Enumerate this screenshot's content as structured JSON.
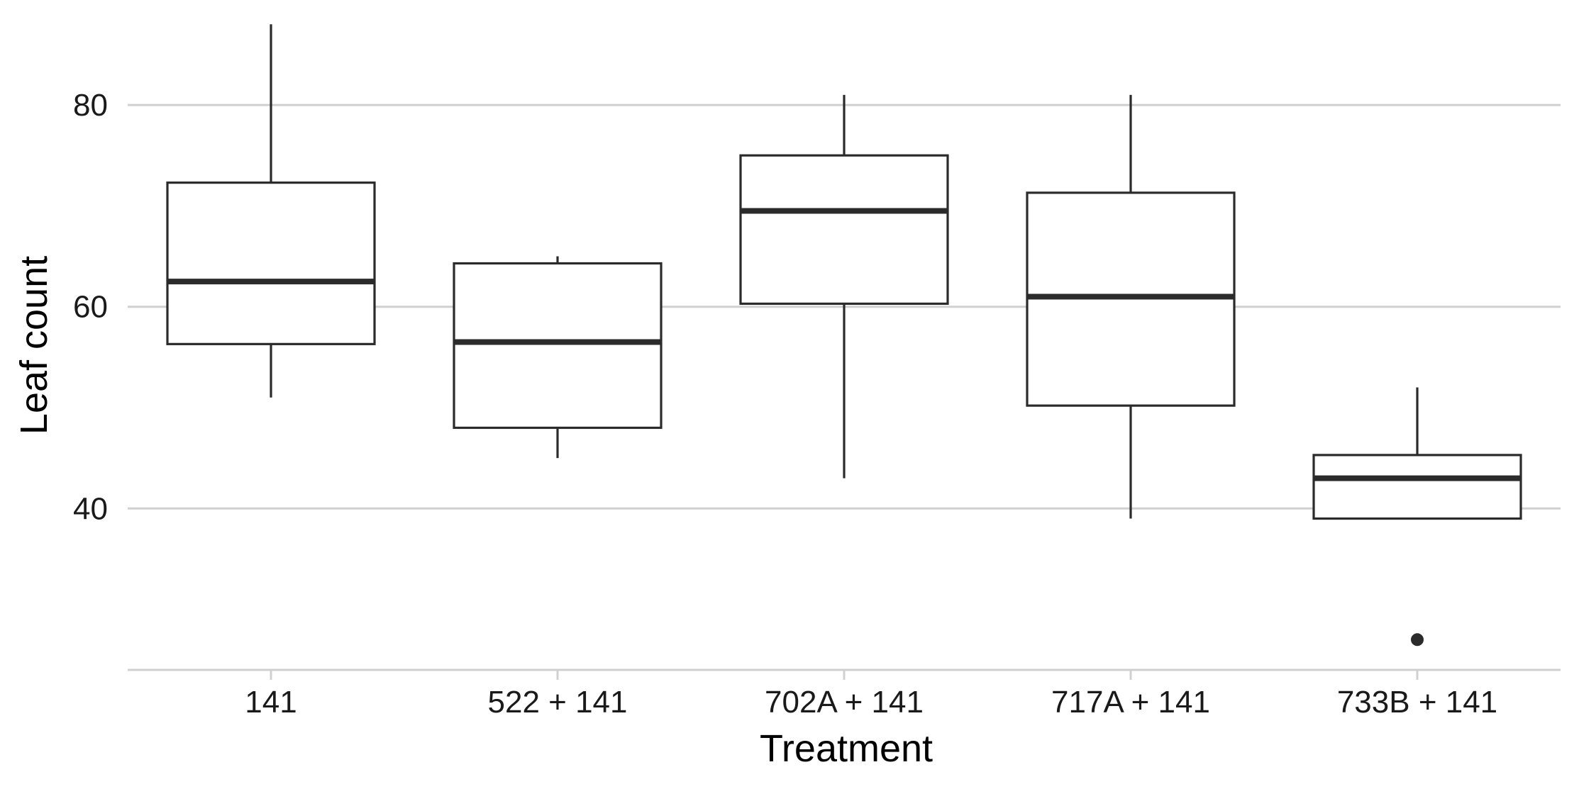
{
  "chart_data": {
    "type": "boxplot",
    "xlabel": "Treatment",
    "ylabel": "Leaf count",
    "ylim": [
      24,
      89
    ],
    "yticks": [
      40,
      60,
      80
    ],
    "grid": "horizontal major lines",
    "colors": {
      "box_stroke": "#2b2b2b",
      "box_fill": "#ffffff",
      "grid": "#d0d0d0"
    },
    "categories": [
      "141",
      "522 + 141",
      "702A + 141",
      "717A + 141",
      "733B + 141"
    ],
    "boxes": [
      {
        "category": "141",
        "whisker_low": 51,
        "q1": 56.3,
        "median": 62.5,
        "q3": 72.3,
        "whisker_high": 88,
        "outliers": []
      },
      {
        "category": "522 + 141",
        "whisker_low": 45,
        "q1": 48.0,
        "median": 56.5,
        "q3": 64.3,
        "whisker_high": 65,
        "outliers": []
      },
      {
        "category": "702A + 141",
        "whisker_low": 43,
        "q1": 60.3,
        "median": 69.5,
        "q3": 75.0,
        "whisker_high": 81,
        "outliers": []
      },
      {
        "category": "717A + 141",
        "whisker_low": 39,
        "q1": 50.2,
        "median": 61.0,
        "q3": 71.3,
        "whisker_high": 81,
        "outliers": []
      },
      {
        "category": "733B + 141",
        "whisker_low": 39,
        "q1": 39.0,
        "median": 43.0,
        "q3": 45.3,
        "whisker_high": 52,
        "outliers": [
          27
        ]
      }
    ]
  }
}
